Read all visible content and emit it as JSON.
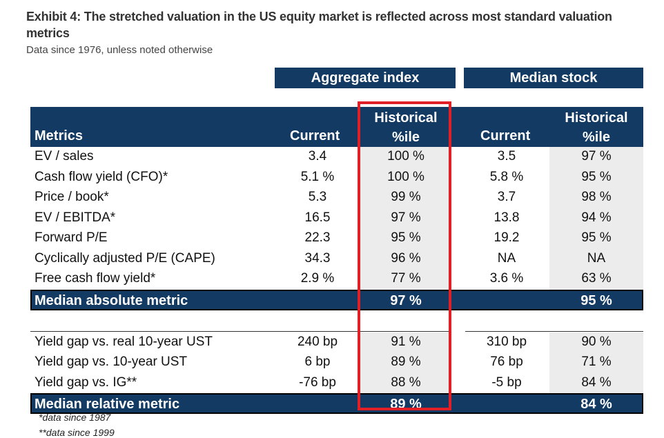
{
  "title": "Exhibit 4: The stretched valuation in the US equity market is reflected across most standard valuation metrics",
  "subtitle": "Data since 1976, unless noted otherwise",
  "groups": {
    "aggregate": "Aggregate index",
    "median": "Median stock"
  },
  "headers": {
    "metrics": "Metrics",
    "current": "Current",
    "hist_line1": "Historical",
    "hist_line2": "%ile"
  },
  "absolute_rows": [
    {
      "name": "EV / sales",
      "agg_current": "3.4",
      "agg_pct": "100 %",
      "med_current": "3.5",
      "med_pct": "97 %"
    },
    {
      "name": "Cash flow yield (CFO)*",
      "agg_current": "5.1 %",
      "agg_pct": "100 %",
      "med_current": "5.8 %",
      "med_pct": "95 %"
    },
    {
      "name": "Price / book*",
      "agg_current": "5.3",
      "agg_pct": "99 %",
      "med_current": "3.7",
      "med_pct": "98 %"
    },
    {
      "name": "EV / EBITDA*",
      "agg_current": "16.5",
      "agg_pct": "97 %",
      "med_current": "13.8",
      "med_pct": "94 %"
    },
    {
      "name": "Forward P/E",
      "agg_current": "22.3",
      "agg_pct": "95 %",
      "med_current": "19.2",
      "med_pct": "95 %"
    },
    {
      "name": "Cyclically adjusted P/E (CAPE)",
      "agg_current": "34.3",
      "agg_pct": "96 %",
      "med_current": "NA",
      "med_pct": "NA"
    },
    {
      "name": "Free cash flow yield*",
      "agg_current": "2.9 %",
      "agg_pct": "77 %",
      "med_current": "3.6 %",
      "med_pct": "63 %"
    }
  ],
  "absolute_summary": {
    "name": "Median absolute metric",
    "agg_pct": "97 %",
    "med_pct": "95 %"
  },
  "relative_rows": [
    {
      "name": "Yield gap vs. real 10-year UST",
      "agg_current": "240 bp",
      "agg_pct": "91 %",
      "med_current": "310 bp",
      "med_pct": "90 %"
    },
    {
      "name": "Yield gap vs. 10-year UST",
      "agg_current": "6 bp",
      "agg_pct": "89 %",
      "med_current": "76 bp",
      "med_pct": "71 %"
    },
    {
      "name": "Yield gap vs. IG**",
      "agg_current": "-76 bp",
      "agg_pct": "88 %",
      "med_current": "-5 bp",
      "med_pct": "84 %"
    }
  ],
  "relative_summary": {
    "name": "Median relative metric",
    "agg_pct": "89 %",
    "med_pct": "84 %"
  },
  "footnotes": [
    "*data since 1987",
    "**data since 1999"
  ],
  "colors": {
    "header_navy": "#123a63",
    "highlight_red": "#e01f26",
    "shade": "#ececec"
  }
}
